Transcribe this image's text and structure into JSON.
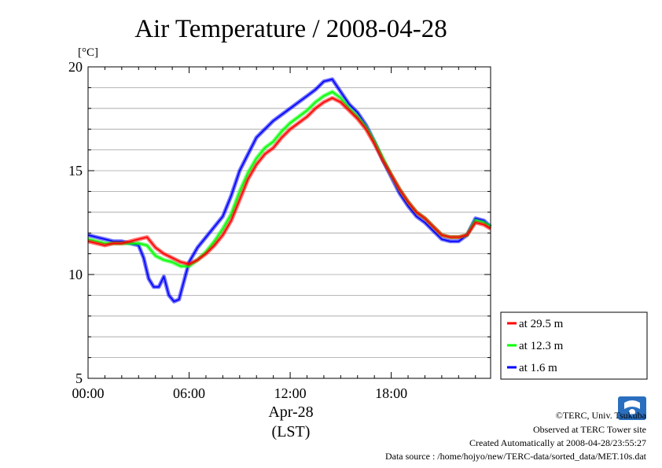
{
  "chart_data": {
    "type": "line",
    "title": "Air Temperature / 2008-04-28",
    "ylabel": "[°C]",
    "xlabel": "Apr-28",
    "xlabel2": "(LST)",
    "xlim": [
      0,
      23.9
    ],
    "ylim": [
      5,
      20
    ],
    "yticks": [
      5,
      10,
      15,
      20
    ],
    "ytick_labels": [
      "5",
      "10",
      "15",
      "20"
    ],
    "xticks": [
      0,
      6,
      12,
      18
    ],
    "xtick_labels": [
      "00:00",
      "06:00",
      "12:00",
      "18:00"
    ],
    "grid": "horizontal, every 1 °C",
    "legend_position": "bottom-right outside",
    "series": [
      {
        "name": "at 29.5 m",
        "color": "#ff0000",
        "x": [
          0,
          0.5,
          1,
          1.5,
          2,
          2.5,
          3,
          3.5,
          4,
          4.5,
          5,
          5.5,
          6,
          6.5,
          7,
          7.5,
          8,
          8.5,
          9,
          9.5,
          10,
          10.5,
          11,
          11.5,
          12,
          12.5,
          13,
          13.5,
          14,
          14.5,
          15,
          15.5,
          16,
          16.5,
          17,
          17.5,
          18,
          18.5,
          19,
          19.5,
          20,
          20.5,
          21,
          21.5,
          22,
          22.5,
          23,
          23.5,
          23.9
        ],
        "values": [
          11.6,
          11.5,
          11.4,
          11.5,
          11.5,
          11.6,
          11.7,
          11.8,
          11.3,
          11.0,
          10.8,
          10.6,
          10.5,
          10.7,
          11.0,
          11.4,
          11.9,
          12.6,
          13.6,
          14.6,
          15.3,
          15.8,
          16.1,
          16.6,
          17.0,
          17.3,
          17.6,
          18.0,
          18.3,
          18.5,
          18.3,
          17.9,
          17.5,
          17.0,
          16.3,
          15.5,
          14.8,
          14.1,
          13.5,
          13.0,
          12.7,
          12.3,
          11.9,
          11.8,
          11.8,
          11.9,
          12.5,
          12.4,
          12.2
        ]
      },
      {
        "name": "at 12.3 m",
        "color": "#00ff00",
        "x": [
          0,
          0.5,
          1,
          1.5,
          2,
          2.5,
          3,
          3.5,
          4,
          4.5,
          5,
          5.5,
          6,
          6.5,
          7,
          7.5,
          8,
          8.5,
          9,
          9.5,
          10,
          10.5,
          11,
          11.5,
          12,
          12.5,
          13,
          13.5,
          14,
          14.5,
          15,
          15.5,
          16,
          16.5,
          17,
          17.5,
          18,
          18.5,
          19,
          19.5,
          20,
          20.5,
          21,
          21.5,
          22,
          22.5,
          23,
          23.5,
          23.9
        ],
        "values": [
          11.7,
          11.6,
          11.5,
          11.5,
          11.5,
          11.5,
          11.5,
          11.4,
          10.9,
          10.7,
          10.6,
          10.4,
          10.4,
          10.7,
          11.1,
          11.6,
          12.2,
          12.9,
          14.0,
          14.9,
          15.6,
          16.1,
          16.4,
          16.9,
          17.3,
          17.6,
          17.9,
          18.3,
          18.6,
          18.8,
          18.5,
          18.0,
          17.6,
          17.1,
          16.4,
          15.6,
          14.8,
          14.1,
          13.5,
          13.0,
          12.7,
          12.3,
          11.9,
          11.8,
          11.8,
          11.9,
          12.6,
          12.5,
          12.3
        ]
      },
      {
        "name": "at 1.6 m",
        "color": "#0000ff",
        "x": [
          0,
          0.5,
          1,
          1.5,
          2,
          2.5,
          3,
          3.3,
          3.6,
          3.9,
          4.2,
          4.5,
          4.8,
          5.1,
          5.4,
          5.7,
          6,
          6.5,
          7,
          7.5,
          8,
          8.5,
          9,
          9.5,
          10,
          10.5,
          11,
          11.5,
          12,
          12.5,
          13,
          13.5,
          14,
          14.5,
          15,
          15.5,
          16,
          16.5,
          17,
          17.5,
          18,
          18.5,
          19,
          19.5,
          20,
          20.5,
          21,
          21.5,
          22,
          22.5,
          23,
          23.5,
          23.9
        ],
        "values": [
          11.9,
          11.8,
          11.7,
          11.6,
          11.6,
          11.5,
          11.4,
          10.8,
          9.8,
          9.4,
          9.4,
          9.9,
          9.0,
          8.7,
          8.8,
          9.7,
          10.6,
          11.3,
          11.8,
          12.3,
          12.8,
          13.8,
          15.0,
          15.8,
          16.6,
          17.0,
          17.4,
          17.7,
          18.0,
          18.3,
          18.6,
          18.9,
          19.3,
          19.4,
          18.8,
          18.2,
          17.8,
          17.2,
          16.4,
          15.5,
          14.7,
          13.9,
          13.3,
          12.8,
          12.5,
          12.1,
          11.7,
          11.6,
          11.6,
          11.9,
          12.7,
          12.6,
          12.3
        ]
      }
    ]
  },
  "credits": {
    "copyright": "©TERC, Univ. Tsukuba",
    "site": "Observed at TERC Tower site",
    "created": "Created Automatically at 2008-04-28/23:55:27",
    "source": "Data source : /home/hojyo/new/TERC-data/sorted_data/MET.10s.dat",
    "logo_text": "TERC"
  }
}
